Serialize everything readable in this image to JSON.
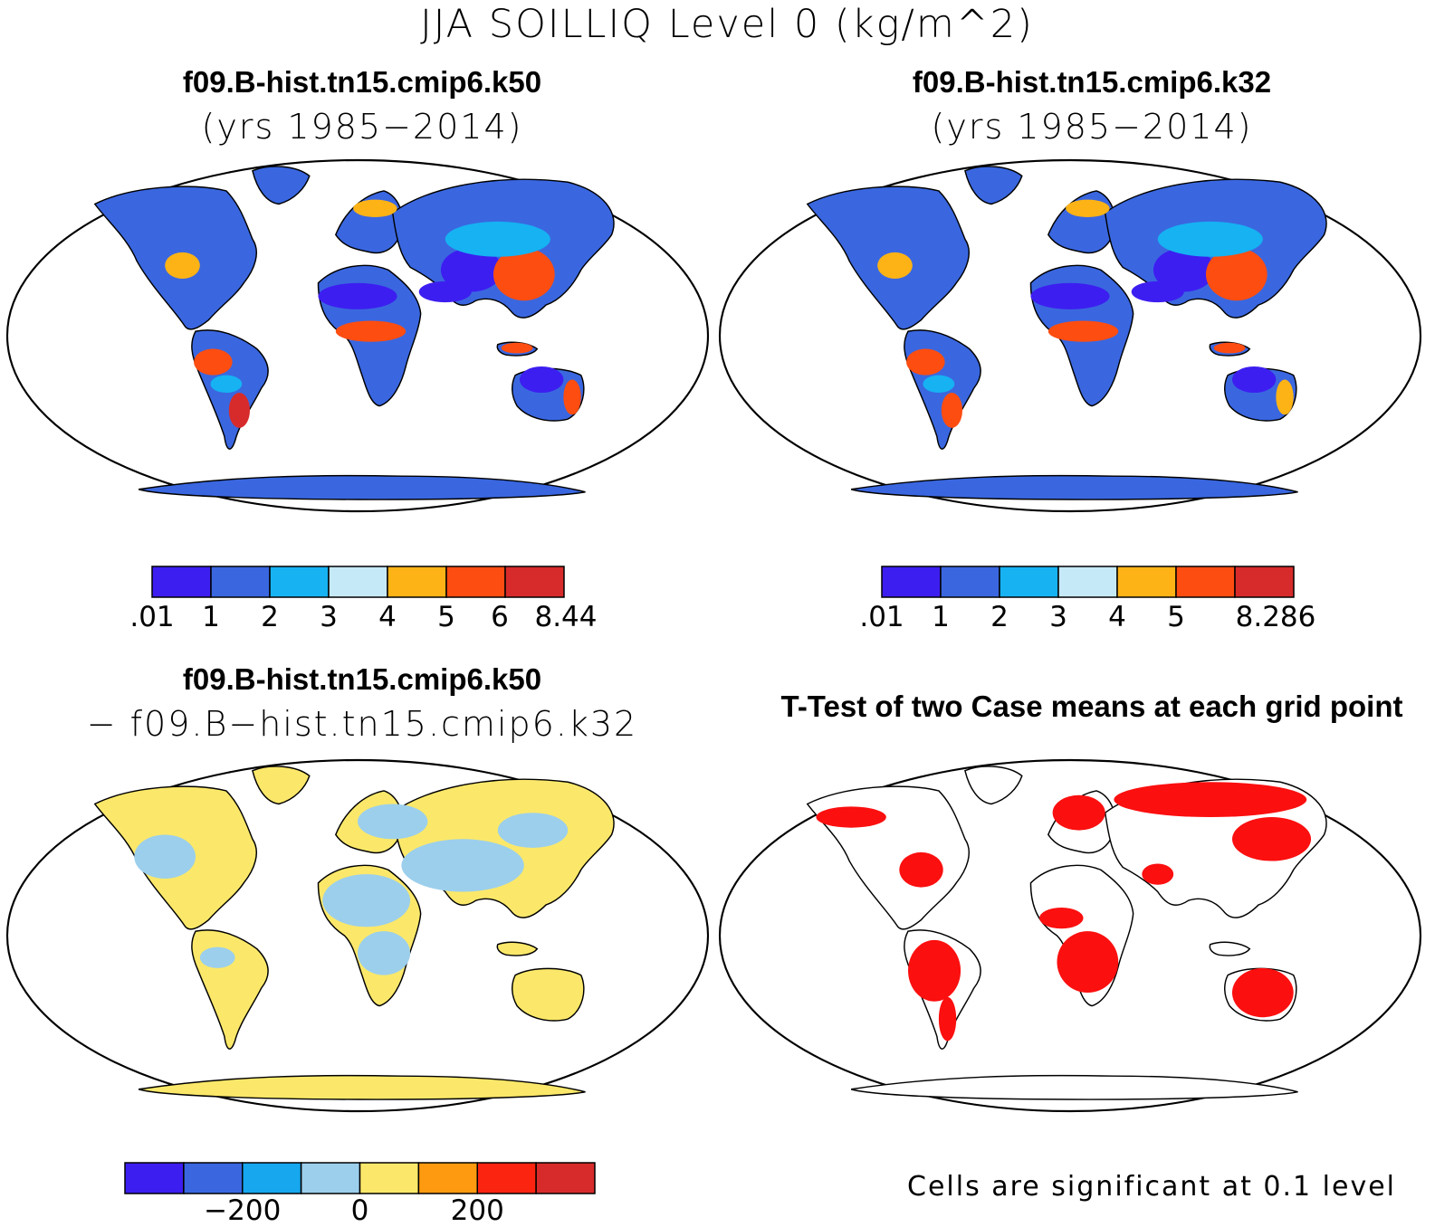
{
  "title": "JJA SOILLIQ Level 0 (kg/m^2)",
  "panels": [
    {
      "title": "f09.B-hist.tn15.cmip6.k50",
      "subtitle": "(yrs 1985−2014)"
    },
    {
      "title": "f09.B-hist.tn15.cmip6.k32",
      "subtitle": "(yrs 1985−2014)"
    },
    {
      "title": "f09.B-hist.tn15.cmip6.k50",
      "subtitle": "− f09.B−hist.tn15.cmip6.k32"
    },
    {
      "title": "T-Test of two Case means at each grid point",
      "subtitle": ""
    }
  ],
  "colorbars": {
    "k50": {
      "colors": [
        "#3d1ef0",
        "#3a67e0",
        "#16b2f2",
        "#c6e9f8",
        "#fdb316",
        "#fd4d11",
        "#d72b2b"
      ],
      "labels": [
        ".01",
        "1",
        "2",
        "3",
        "4",
        "5",
        "6",
        "8.44"
      ]
    },
    "k32": {
      "colors": [
        "#3d1ef0",
        "#3a67e0",
        "#16b2f2",
        "#c6e9f8",
        "#fdb316",
        "#fd4d11",
        "#d72b2b"
      ],
      "labels": [
        ".01",
        "1",
        "2",
        "3",
        "4",
        "5",
        "",
        "8.286"
      ]
    },
    "diff": {
      "colors": [
        "#3d1ef0",
        "#3a67e0",
        "#16a7ee",
        "#9ccfec",
        "#fbe86a",
        "#fd9a10",
        "#fb2410",
        "#d72b2b"
      ],
      "labels": [
        "−200",
        "0",
        "200"
      ]
    }
  },
  "note": "Cells are significant at 0.1 level",
  "map_colors": {
    "ocean": "#ffffff",
    "coast": "#000000",
    "significant": "#fb0f0f"
  }
}
